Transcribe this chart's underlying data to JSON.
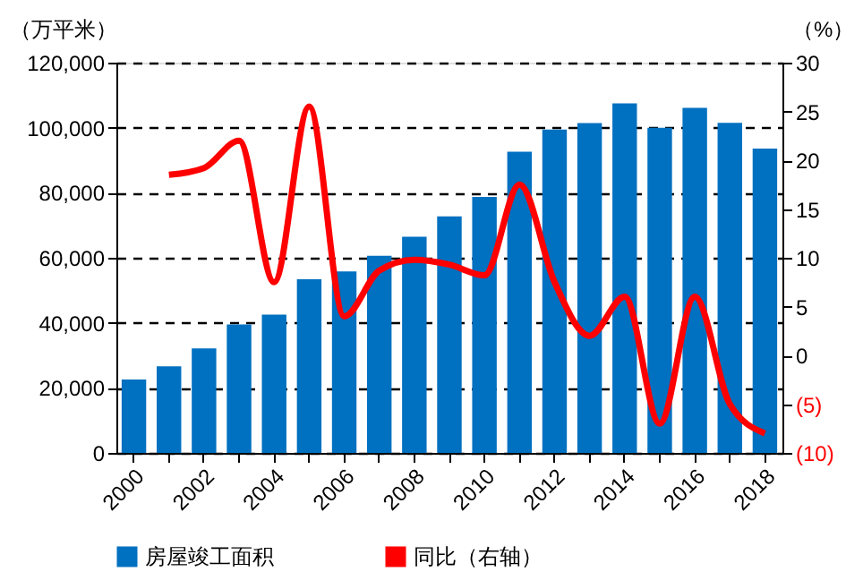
{
  "chart_data": {
    "type": "bar",
    "categories": [
      "2000",
      null,
      "2002",
      null,
      "2004",
      null,
      "2006",
      null,
      "2008",
      null,
      "2010",
      null,
      "2012",
      null,
      "2014",
      null,
      "2016",
      null,
      "2018"
    ],
    "series": [
      {
        "name": "房屋竣工面积",
        "color": "#0070c0",
        "values": [
          22600,
          26600,
          32100,
          39500,
          42500,
          53400,
          55800,
          60600,
          66500,
          72700,
          78700,
          92600,
          99400,
          101400,
          107500,
          100000,
          106100,
          101500,
          93600
        ]
      },
      {
        "name": "同比（右轴）",
        "type": "line",
        "axis": "y2",
        "color": "#ff0000",
        "values": [
          null,
          18.5,
          19.2,
          22,
          7.5,
          25.5,
          4,
          8.7,
          9.8,
          9.3,
          8.2,
          17.5,
          7.5,
          2,
          6,
          -7,
          6,
          -5,
          -8
        ]
      }
    ],
    "ylabel": "（万平米）",
    "y2label": "（%）",
    "ylim": [
      0,
      120000
    ],
    "yticks": [
      0,
      {
        "value": 20000,
        "label": "20,000"
      },
      {
        "value": 40000,
        "label": "40,000"
      },
      {
        "value": 60000,
        "label": "60,000"
      },
      {
        "value": 80000,
        "label": "80,000"
      },
      {
        "value": 100000,
        "label": "100,000"
      },
      {
        "value": 120000,
        "label": "120,000"
      }
    ],
    "y2lim": [
      -10,
      30
    ],
    "y2ticks": [
      {
        "value": -10,
        "label": "(10)"
      },
      {
        "value": -5,
        "label": "(5)"
      },
      0,
      5,
      10,
      15,
      20,
      25,
      30
    ],
    "grid": "y",
    "legend": "bottom",
    "line_style": "solid",
    "marker": "none"
  }
}
